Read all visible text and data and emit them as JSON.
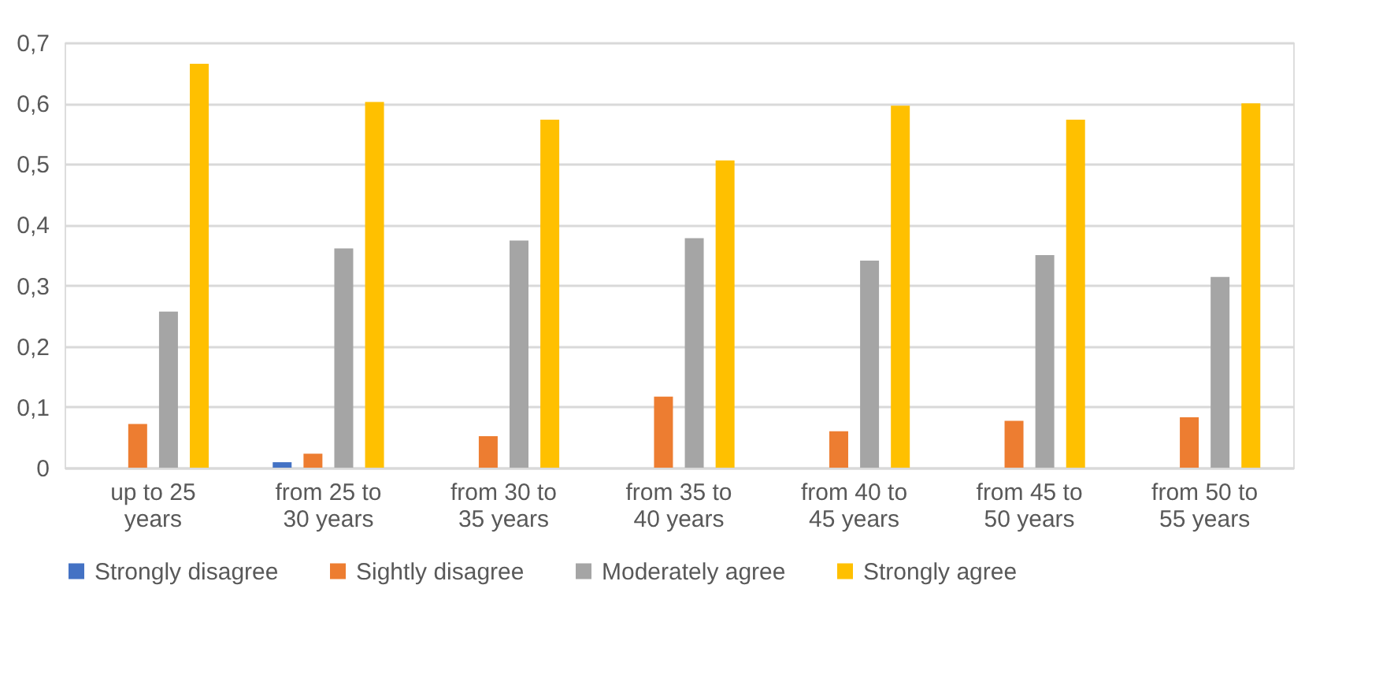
{
  "chart_data": {
    "type": "bar",
    "categories": [
      "up to 25 years",
      "from 25 to 30 years",
      "from 30 to 35 years",
      "from 35 to 40 years",
      "from 40 to 45 years",
      "from 45 to 50 years",
      "from 50 to 55 years"
    ],
    "series": [
      {
        "name": "Strongly disagree",
        "color": "#4472c4",
        "values": [
          0,
          0.009,
          0,
          0,
          0,
          0,
          0
        ]
      },
      {
        "name": "Sightly disagree",
        "color": "#ed7d31",
        "values": [
          0.072,
          0.023,
          0.052,
          0.117,
          0.06,
          0.077,
          0.083
        ]
      },
      {
        "name": "Moderately agree",
        "color": "#a5a5a5",
        "values": [
          0.257,
          0.361,
          0.374,
          0.378,
          0.341,
          0.35,
          0.314
        ]
      },
      {
        "name": "Strongly agree",
        "color": "#ffc000",
        "values": [
          0.665,
          0.602,
          0.573,
          0.506,
          0.596,
          0.573,
          0.6
        ]
      }
    ],
    "ylim": [
      0,
      0.7
    ],
    "yticks": [
      0,
      {
        "value": 0.1,
        "label": "0,1"
      },
      {
        "value": 0.2,
        "label": "0,2"
      },
      {
        "value": 0.3,
        "label": "0,3"
      },
      {
        "value": 0.4,
        "label": "0,4"
      },
      {
        "value": 0.5,
        "label": "0,5"
      },
      {
        "value": 0.6,
        "label": "0,6"
      },
      {
        "value": 0.7,
        "label": "0,7"
      }
    ],
    "grid": "y",
    "legend": "bottom"
  }
}
